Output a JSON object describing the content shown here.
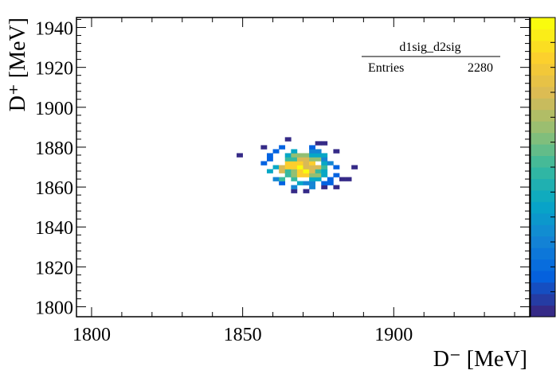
{
  "chart_data": {
    "type": "heatmap",
    "xlabel": "D⁻ [MeV]",
    "ylabel": "D⁺ [MeV]",
    "xlim": [
      1795,
      1945
    ],
    "ylim": [
      1795,
      1945
    ],
    "x_ticks": [
      "1800",
      "1850",
      "1900"
    ],
    "y_ticks": [
      "1800",
      "1820",
      "1840",
      "1860",
      "1880",
      "1900",
      "1920",
      "1940"
    ],
    "stats_box": {
      "name": "d1sig_d2sig",
      "entries_label": "Entries",
      "entries_value": "2280"
    },
    "histogram": {
      "bin_width_mev": 2,
      "center": [
        1869,
        1870
      ],
      "sigma": [
        6.8,
        6.0
      ],
      "entries": 2280,
      "x_range": [
        1840,
        1892
      ],
      "y_range": [
        1845,
        1899
      ]
    },
    "palette": [
      "#352a87",
      "#0363e1",
      "#1485d4",
      "#06a7c6",
      "#38b99e",
      "#92bf73",
      "#d9ba56",
      "#fcce2e",
      "#f9fb0e"
    ]
  }
}
